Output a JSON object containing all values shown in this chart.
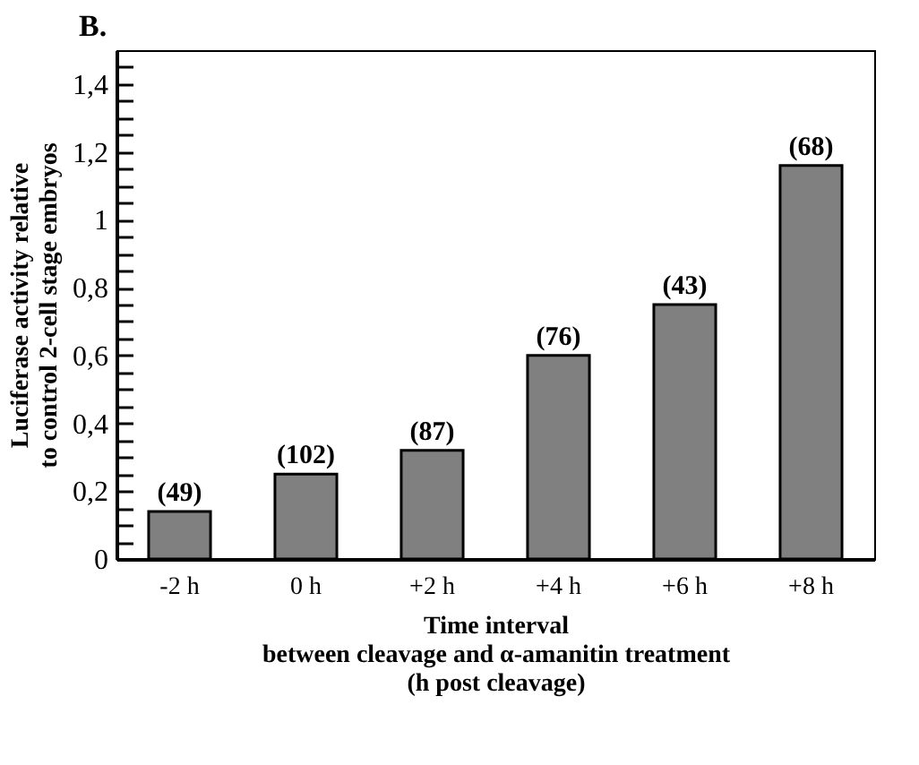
{
  "chart_data": {
    "type": "bar",
    "title": "B.",
    "xlabel": "Time interval\nbetween cleavage and α-amanitin treatment\n(h post cleavage)",
    "ylabel": "Luciferase activity relative\nto control 2-cell stage embryos",
    "categories": [
      "-2 h",
      "0 h",
      "+2 h",
      "+4 h",
      "+6 h",
      "+8 h"
    ],
    "values": [
      0.14,
      0.25,
      0.32,
      0.6,
      0.75,
      1.16
    ],
    "annotations": [
      {
        "text": "(49)",
        "x": "-2 h",
        "y": 0.14
      },
      {
        "text": "(102)",
        "x": "0 h",
        "y": 0.25
      },
      {
        "text": "(87)",
        "x": "+2 h",
        "y": 0.32
      },
      {
        "text": "(76)",
        "x": "+4 h",
        "y": 0.6
      },
      {
        "text": "(43)",
        "x": "+6 h",
        "y": 0.75
      },
      {
        "text": "(68)",
        "x": "+8 h",
        "y": 1.16
      }
    ],
    "color": "#808080",
    "ylim": [
      0,
      1.5
    ],
    "yticks": [
      0,
      {
        "value": 0.05,
        "label": null
      },
      {
        "value": 0.1,
        "label": null
      },
      {
        "value": 0.15,
        "label": null
      },
      {
        "value": 0.2,
        "label": "0,2"
      },
      {
        "value": 0.25,
        "label": null
      },
      {
        "value": 0.3,
        "label": null
      },
      {
        "value": 0.35,
        "label": null
      },
      {
        "value": 0.4,
        "label": "0,4"
      },
      {
        "value": 0.45,
        "label": null
      },
      {
        "value": 0.5,
        "label": null
      },
      {
        "value": 0.55,
        "label": null
      },
      {
        "value": 0.6,
        "label": "0,6"
      },
      {
        "value": 0.65,
        "label": null
      },
      {
        "value": 0.7,
        "label": null
      },
      {
        "value": 0.75,
        "label": null
      },
      {
        "value": 0.8,
        "label": "0,8"
      },
      {
        "value": 0.85,
        "label": null
      },
      {
        "value": 0.9,
        "label": null
      },
      {
        "value": 0.95,
        "label": null
      },
      1,
      {
        "value": 1.05,
        "label": null
      },
      {
        "value": 1.1,
        "label": null
      },
      {
        "value": 1.15,
        "label": null
      },
      {
        "value": 1.2,
        "label": "1,2"
      },
      {
        "value": 1.25,
        "label": null
      },
      {
        "value": 1.3,
        "label": null
      },
      {
        "value": 1.35,
        "label": null
      },
      {
        "value": 1.4,
        "label": "1,4"
      },
      {
        "value": 1.45,
        "label": null
      }
    ],
    "grid": false
  }
}
